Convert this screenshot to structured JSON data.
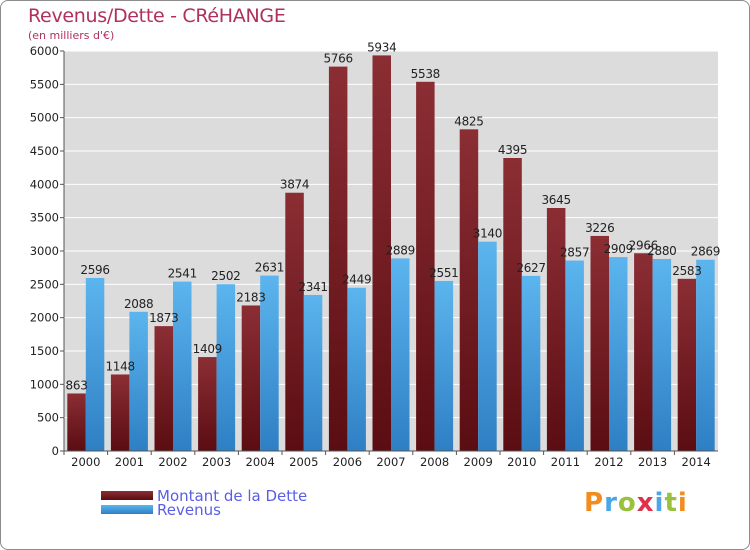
{
  "chart_data": {
    "type": "bar",
    "title": "Revenus/Dette - CRéHANGE",
    "subtitle": "(en milliers d'€)",
    "categories": [
      "2000",
      "2001",
      "2002",
      "2003",
      "2004",
      "2005",
      "2006",
      "2007",
      "2008",
      "2009",
      "2010",
      "2011",
      "2012",
      "2013",
      "2014"
    ],
    "series": [
      {
        "name": "Montant de la Dette",
        "color": "#7a1f25",
        "values": [
          863,
          1148,
          1873,
          1409,
          2183,
          3874,
          5766,
          5934,
          5538,
          4825,
          4395,
          3645,
          3226,
          2966,
          2583
        ]
      },
      {
        "name": "Revenus",
        "color": "#4aa6e6",
        "values": [
          2596,
          2088,
          2541,
          2502,
          2631,
          2341,
          2449,
          2889,
          2551,
          3140,
          2627,
          2857,
          2909,
          2880,
          2869
        ]
      }
    ],
    "ylim": [
      0,
      6000
    ],
    "yticks": [
      0,
      500,
      1000,
      1500,
      2000,
      2500,
      3000,
      3500,
      4000,
      4500,
      5000,
      5500,
      6000
    ],
    "grid": true,
    "legend_position": "bottom-left",
    "background": "#dcdcdc"
  },
  "branding": {
    "logo": "Proxiti"
  }
}
